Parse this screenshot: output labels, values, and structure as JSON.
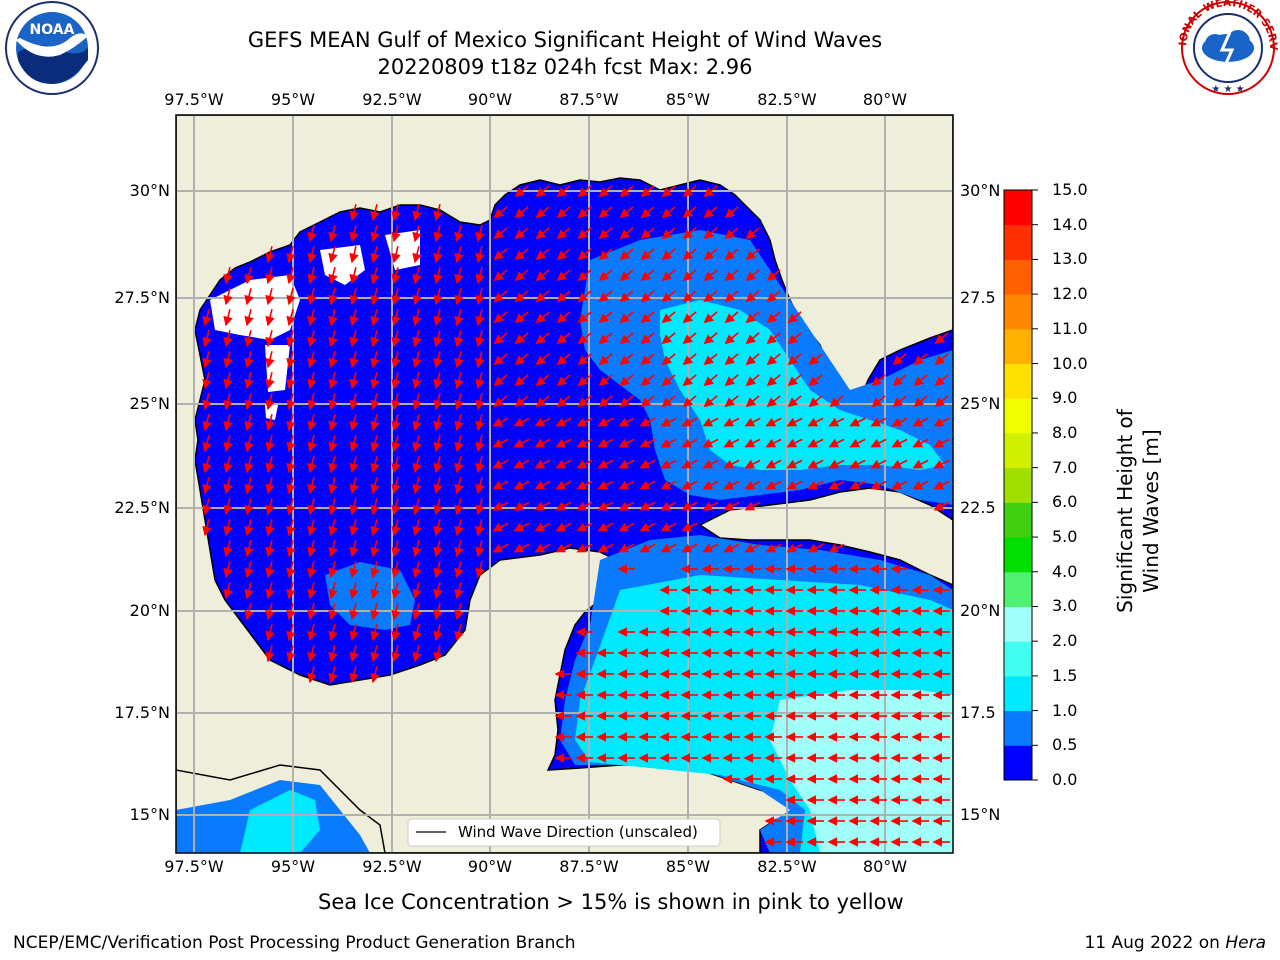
{
  "title_line1": "GEFS MEAN Gulf of Mexico Significant Height of Wind Waves",
  "title_line2": "20220809 t18z 024h fcst   Max: 2.96",
  "logos": {
    "left": "noaa-logo",
    "right": "national-weather-service-logo",
    "left_ring_text": "NATIONAL OCEANIC AND ATMOSPHERIC ADMINISTRATION · U.S. DEPARTMENT OF COMMERCE",
    "left_center_text": "NOAA",
    "right_ring_text": "NATIONAL WEATHER SERVICE"
  },
  "lon_labels": [
    "97.5°W",
    "95°W",
    "92.5°W",
    "90°W",
    "87.5°W",
    "85°W",
    "82.5°W",
    "80°W"
  ],
  "lat_labels": [
    "30°N",
    "27.5°N",
    "25°N",
    "22.5°N",
    "20°N",
    "17.5°N",
    "15°N"
  ],
  "lat_labels_right": [
    "30°N",
    "27.5",
    "25°N",
    "22.5",
    "20°N",
    "17.5",
    "15°N"
  ],
  "legend_label": "Wind Wave Direction (unscaled)",
  "colorbar": {
    "title": "Significant Height of Wind Waves [m]",
    "ticks": [
      "0.0",
      "0.5",
      "1.0",
      "1.5",
      "2.0",
      "3.0",
      "4.0",
      "5.0",
      "6.0",
      "7.0",
      "8.0",
      "9.0",
      "10.0",
      "11.0",
      "12.0",
      "13.0",
      "14.0",
      "15.0"
    ],
    "colors": [
      "#0000ff",
      "#0a7aff",
      "#00eaff",
      "#40fff0",
      "#a0fff8",
      "#50f070",
      "#00e000",
      "#40d010",
      "#a0e000",
      "#d0f000",
      "#f0ff00",
      "#ffe000",
      "#ffb000",
      "#ff8800",
      "#ff6000",
      "#ff3000",
      "#ff0000"
    ]
  },
  "colors": {
    "land": "#efeedb",
    "grid": "#b0b0b0",
    "arrow": "#ff0000",
    "coast": "#000000"
  },
  "sea_ice_note": "Sea Ice Concentration > 15% is shown in pink to yellow",
  "footer_left": "NCEP/EMC/Verification Post Processing Product Generation Branch",
  "footer_right_date": "11 Aug 2022 on",
  "footer_right_host": "Hera"
}
